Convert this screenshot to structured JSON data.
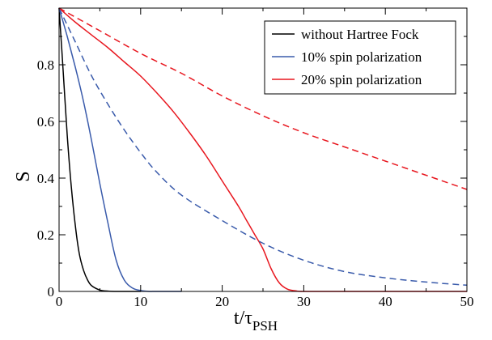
{
  "chart_data": {
    "type": "line",
    "xlabel": "t/τ",
    "xlabel_sub": "PSH",
    "ylabel": "S",
    "xlim": [
      0,
      50
    ],
    "ylim": [
      0,
      1.0
    ],
    "x_ticks": [
      0,
      10,
      20,
      30,
      40,
      50
    ],
    "y_ticks": [
      0,
      0.2,
      0.4,
      0.6,
      0.8
    ],
    "x_tick_labels": [
      "0",
      "10",
      "20",
      "30",
      "40",
      "50"
    ],
    "y_tick_labels": [
      "0",
      "0.2",
      "0.4",
      "0.6",
      "0.8"
    ],
    "grid": false,
    "legend_position": "top-right",
    "series": [
      {
        "name": "without Hartree Fock",
        "color": "#000000",
        "style": "solid",
        "x": [
          0,
          0.5,
          1,
          1.5,
          2,
          2.5,
          3,
          3.5,
          4,
          5,
          6,
          7,
          8,
          10
        ],
        "y": [
          1.0,
          0.78,
          0.55,
          0.37,
          0.23,
          0.13,
          0.075,
          0.04,
          0.02,
          0.005,
          0.001,
          0.0,
          0.0,
          0.0
        ]
      },
      {
        "name": "10% spin polarization",
        "color": "#3a5bab",
        "style": "solid",
        "x": [
          0,
          1,
          2,
          3,
          4,
          5,
          6,
          7,
          8,
          9,
          10,
          11,
          12,
          15
        ],
        "y": [
          1.0,
          0.9,
          0.79,
          0.67,
          0.53,
          0.38,
          0.24,
          0.11,
          0.04,
          0.012,
          0.003,
          0.0,
          0.0,
          0.0
        ]
      },
      {
        "name": "20% spin polarization",
        "color": "#e8171f",
        "style": "solid",
        "x": [
          0,
          2,
          4,
          6,
          8,
          10,
          12,
          14,
          16,
          18,
          20,
          22,
          23,
          24,
          25,
          26,
          27,
          28,
          29,
          30,
          35,
          50
        ],
        "y": [
          1.0,
          0.95,
          0.905,
          0.86,
          0.81,
          0.76,
          0.7,
          0.635,
          0.56,
          0.48,
          0.39,
          0.3,
          0.25,
          0.2,
          0.15,
          0.08,
          0.03,
          0.008,
          0.002,
          0.0,
          0.0,
          0.0
        ]
      },
      {
        "name": "",
        "color": "#3a5bab",
        "style": "dashed",
        "x": [
          0,
          2,
          4,
          6,
          8,
          10,
          12,
          15,
          20,
          25,
          30,
          35,
          40,
          45,
          50
        ],
        "y": [
          1.0,
          0.88,
          0.76,
          0.66,
          0.57,
          0.49,
          0.42,
          0.34,
          0.25,
          0.17,
          0.11,
          0.07,
          0.048,
          0.033,
          0.022
        ]
      },
      {
        "name": "",
        "color": "#e8171f",
        "style": "dashed",
        "x": [
          0,
          5,
          10,
          15,
          20,
          25,
          30,
          35,
          40,
          45,
          50
        ],
        "y": [
          1.0,
          0.92,
          0.84,
          0.77,
          0.69,
          0.62,
          0.56,
          0.51,
          0.46,
          0.41,
          0.36
        ]
      }
    ]
  }
}
